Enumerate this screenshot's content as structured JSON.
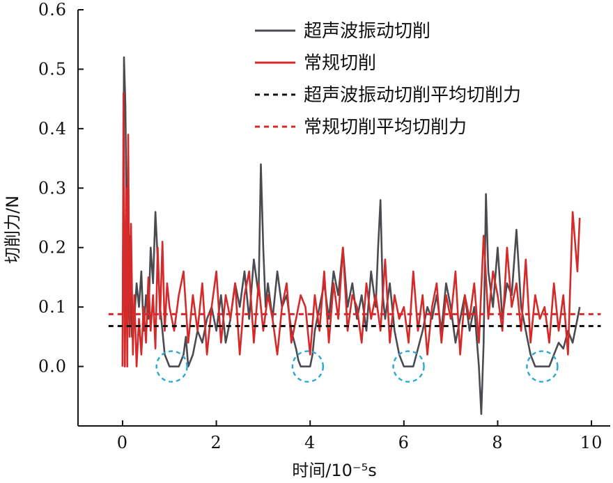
{
  "chart_data": {
    "type": "line",
    "xlabel": "时间/10⁻⁵s",
    "ylabel": "切削力/N",
    "xlim": [
      -0.95,
      10.4
    ],
    "ylim": [
      -0.1,
      0.6
    ],
    "xticks": [
      "0",
      "2",
      "4",
      "6",
      "8",
      "10"
    ],
    "xtick_values": [
      0,
      2,
      4,
      6,
      8,
      10
    ],
    "yticks": [
      "0.0",
      "0.1",
      "0.2",
      "0.3",
      "0.4",
      "0.5",
      "0.6"
    ],
    "ytick_values": [
      0,
      0.1,
      0.2,
      0.3,
      0.4,
      0.5,
      0.6
    ],
    "legend_position": "top-right",
    "series": [
      {
        "name": "超声波振动切削",
        "color": "#4a4b50",
        "style": "solid",
        "x": [
          0,
          0.03,
          0.06,
          0.08,
          0.1,
          0.12,
          0.15,
          0.2,
          0.25,
          0.3,
          0.35,
          0.4,
          0.45,
          0.5,
          0.55,
          0.6,
          0.65,
          0.7,
          0.75,
          0.8,
          0.85,
          0.9,
          0.95,
          1.0,
          1.05,
          1.1,
          1.2,
          1.3,
          1.35,
          1.4,
          1.5,
          1.6,
          1.7,
          1.8,
          1.9,
          2.0,
          2.1,
          2.2,
          2.3,
          2.4,
          2.5,
          2.6,
          2.7,
          2.8,
          2.9,
          2.95,
          3.0,
          3.05,
          3.1,
          3.2,
          3.3,
          3.4,
          3.5,
          3.6,
          3.7,
          3.75,
          3.8,
          3.85,
          3.9,
          3.95,
          4.0,
          4.05,
          4.1,
          4.2,
          4.3,
          4.4,
          4.5,
          4.6,
          4.7,
          4.8,
          4.9,
          5.0,
          5.1,
          5.2,
          5.3,
          5.4,
          5.45,
          5.5,
          5.55,
          5.6,
          5.7,
          5.8,
          5.9,
          6.0,
          6.05,
          6.1,
          6.2,
          6.3,
          6.4,
          6.5,
          6.6,
          6.7,
          6.8,
          6.9,
          7.0,
          7.1,
          7.2,
          7.3,
          7.4,
          7.5,
          7.6,
          7.65,
          7.7,
          7.75,
          7.8,
          7.9,
          8.0,
          8.1,
          8.2,
          8.3,
          8.4,
          8.5,
          8.6,
          8.7,
          8.8,
          8.9,
          9.0,
          9.1,
          9.2,
          9.3,
          9.4,
          9.5,
          9.6,
          9.7,
          9.75
        ],
        "y": [
          0.0,
          0.52,
          0.44,
          0.3,
          0.06,
          0.12,
          0.22,
          0.05,
          0.08,
          0.14,
          0.1,
          0.16,
          0.06,
          0.12,
          0.08,
          0.2,
          0.14,
          0.26,
          0.18,
          0.1,
          0.06,
          0.02,
          0.01,
          0.0,
          0.0,
          0.0,
          0.0,
          0.02,
          0.05,
          0.0,
          0.02,
          0.06,
          0.04,
          0.08,
          0.1,
          0.06,
          0.12,
          0.04,
          0.08,
          0.14,
          0.1,
          0.16,
          0.08,
          0.18,
          0.12,
          0.34,
          0.2,
          0.1,
          0.14,
          0.08,
          0.16,
          0.1,
          0.12,
          0.06,
          0.03,
          0.01,
          0.0,
          0.0,
          0.0,
          0.0,
          0.0,
          0.02,
          0.06,
          0.1,
          0.14,
          0.08,
          0.16,
          0.12,
          0.2,
          0.1,
          0.14,
          0.08,
          0.12,
          0.06,
          0.16,
          0.1,
          0.2,
          0.28,
          0.12,
          0.08,
          0.14,
          0.06,
          0.02,
          0.0,
          0.0,
          0.0,
          0.0,
          0.03,
          0.06,
          0.1,
          0.08,
          0.12,
          0.06,
          0.14,
          0.1,
          0.04,
          0.08,
          0.12,
          0.06,
          0.1,
          0.0,
          -0.08,
          0.04,
          0.29,
          0.16,
          0.1,
          0.2,
          0.08,
          0.14,
          0.12,
          0.23,
          0.1,
          0.06,
          0.02,
          0.0,
          0.0,
          0.0,
          0.0,
          0.02,
          0.04,
          0.03,
          0.06,
          0.04,
          0.08,
          0.1
        ]
      },
      {
        "name": "常规切削",
        "color": "#d42a2a",
        "style": "solid",
        "x": [
          0,
          0.02,
          0.05,
          0.08,
          0.1,
          0.12,
          0.15,
          0.18,
          0.22,
          0.25,
          0.3,
          0.35,
          0.4,
          0.45,
          0.5,
          0.55,
          0.6,
          0.65,
          0.7,
          0.75,
          0.8,
          0.85,
          0.9,
          0.95,
          1.0,
          1.1,
          1.2,
          1.3,
          1.4,
          1.5,
          1.6,
          1.7,
          1.8,
          1.9,
          2.0,
          2.1,
          2.2,
          2.3,
          2.4,
          2.5,
          2.6,
          2.7,
          2.8,
          2.9,
          3.0,
          3.1,
          3.2,
          3.3,
          3.4,
          3.5,
          3.6,
          3.7,
          3.8,
          3.9,
          4.0,
          4.1,
          4.2,
          4.3,
          4.4,
          4.5,
          4.6,
          4.7,
          4.8,
          4.9,
          5.0,
          5.1,
          5.2,
          5.3,
          5.4,
          5.5,
          5.6,
          5.7,
          5.8,
          5.9,
          6.0,
          6.1,
          6.2,
          6.3,
          6.4,
          6.5,
          6.6,
          6.7,
          6.8,
          6.9,
          7.0,
          7.1,
          7.2,
          7.3,
          7.4,
          7.5,
          7.6,
          7.7,
          7.8,
          7.9,
          8.0,
          8.1,
          8.2,
          8.3,
          8.4,
          8.5,
          8.6,
          8.7,
          8.8,
          8.9,
          9.0,
          9.1,
          9.2,
          9.3,
          9.4,
          9.5,
          9.6,
          9.7,
          9.75
        ],
        "y": [
          0.0,
          0.46,
          0.0,
          0.3,
          0.0,
          0.39,
          0.05,
          0.24,
          0.02,
          0.12,
          0.0,
          0.08,
          0.02,
          0.1,
          0.04,
          0.15,
          0.06,
          0.12,
          0.03,
          0.2,
          0.08,
          0.21,
          0.06,
          0.14,
          0.1,
          0.06,
          0.12,
          0.16,
          0.04,
          0.12,
          0.06,
          0.14,
          0.02,
          0.1,
          0.16,
          0.04,
          0.12,
          0.08,
          0.14,
          0.02,
          0.12,
          0.16,
          0.04,
          0.14,
          0.06,
          0.12,
          0.08,
          0.02,
          0.1,
          0.14,
          0.04,
          0.08,
          0.12,
          0.1,
          0.02,
          0.12,
          0.06,
          0.16,
          0.04,
          0.14,
          0.08,
          0.2,
          0.06,
          0.12,
          0.1,
          0.04,
          0.14,
          0.08,
          0.12,
          0.06,
          0.18,
          0.04,
          0.12,
          0.08,
          0.1,
          0.04,
          0.16,
          0.06,
          0.12,
          0.02,
          0.1,
          0.14,
          0.04,
          0.12,
          0.08,
          0.16,
          0.02,
          0.12,
          0.08,
          0.14,
          0.04,
          0.22,
          0.08,
          0.16,
          0.12,
          0.06,
          0.2,
          0.1,
          0.14,
          0.06,
          0.18,
          0.04,
          0.12,
          0.08,
          0.1,
          0.04,
          0.14,
          0.06,
          0.12,
          0.02,
          0.26,
          0.16,
          0.25
        ]
      },
      {
        "name": "超声波振动切削平均切削力",
        "color": "#111111",
        "style": "dashed",
        "x": [
          -0.3,
          10.2
        ],
        "y": [
          0.068,
          0.068
        ]
      },
      {
        "name": "常规切削平均切削力",
        "color": "#d42a2a",
        "style": "dashed",
        "x": [
          -0.3,
          10.2
        ],
        "y": [
          0.088,
          0.088
        ]
      }
    ],
    "annotations": [
      {
        "type": "dashed-circle",
        "color": "#2aa6d8",
        "x": 1.05,
        "y": 0.0
      },
      {
        "type": "dashed-circle",
        "color": "#2aa6d8",
        "x": 3.95,
        "y": 0.0
      },
      {
        "type": "dashed-circle",
        "color": "#2aa6d8",
        "x": 6.1,
        "y": 0.0
      },
      {
        "type": "dashed-circle",
        "color": "#2aa6d8",
        "x": 8.95,
        "y": 0.0
      }
    ]
  }
}
